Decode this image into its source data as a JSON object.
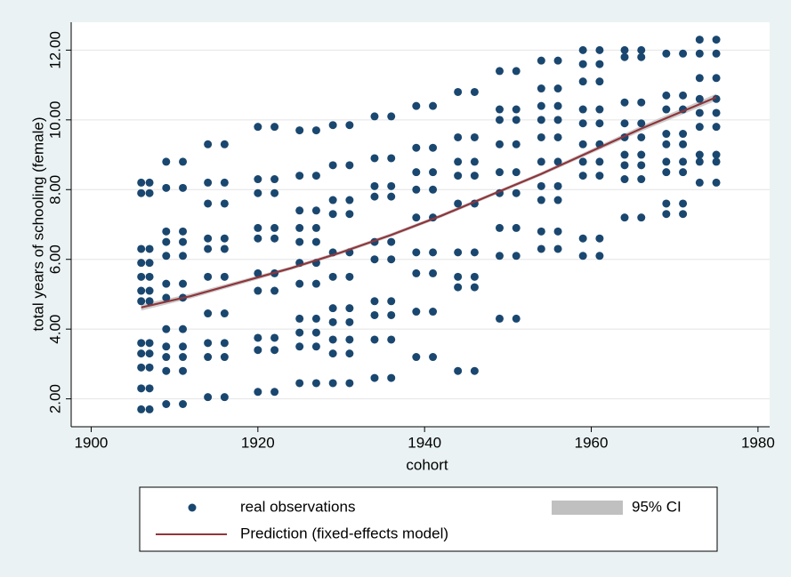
{
  "chart_data": {
    "type": "scatter",
    "x_label": "cohort",
    "y_label": "total years of schooling (female)",
    "xlim": [
      1897.6,
      1981.4
    ],
    "ylim": [
      1.2,
      12.8
    ],
    "xticks": [
      1900,
      1920,
      1940,
      1960,
      1980
    ],
    "yticks": [
      {
        "value": 2,
        "label": "2.00"
      },
      {
        "value": 4,
        "label": "4.00"
      },
      {
        "value": 6,
        "label": "6.00"
      },
      {
        "value": 8,
        "label": "8.00"
      },
      {
        "value": 10,
        "label": "10.00"
      },
      {
        "value": 12,
        "label": "12.00"
      }
    ],
    "grid": true,
    "legend": "bottom",
    "series": [
      {
        "name": "real observations",
        "type": "scatter",
        "color": "#1a476f",
        "x": [
          1906,
          1907,
          1906,
          1907,
          1906,
          1907,
          1906,
          1907,
          1906,
          1907,
          1906,
          1907,
          1906,
          1907,
          1906,
          1907,
          1906,
          1907,
          1906,
          1907,
          1906,
          1907,
          1906,
          1907,
          1909,
          1911,
          1909,
          1911,
          1909,
          1911,
          1909,
          1911,
          1909,
          1911,
          1909,
          1911,
          1909,
          1911,
          1909,
          1911,
          1909,
          1911,
          1909,
          1911,
          1909,
          1911,
          1909,
          1911,
          1914,
          1916,
          1914,
          1916,
          1914,
          1916,
          1914,
          1916,
          1914,
          1916,
          1914,
          1916,
          1914,
          1916,
          1914,
          1916,
          1914,
          1916,
          1914,
          1916,
          1920,
          1922,
          1920,
          1922,
          1920,
          1922,
          1920,
          1922,
          1920,
          1922,
          1920,
          1922,
          1920,
          1922,
          1920,
          1922,
          1920,
          1922,
          1920,
          1922,
          1925,
          1927,
          1925,
          1927,
          1925,
          1927,
          1925,
          1927,
          1925,
          1927,
          1925,
          1927,
          1925,
          1927,
          1925,
          1927,
          1925,
          1927,
          1925,
          1927,
          1925,
          1927,
          1929,
          1931,
          1929,
          1931,
          1929,
          1931,
          1929,
          1931,
          1929,
          1931,
          1929,
          1931,
          1929,
          1931,
          1929,
          1931,
          1929,
          1931,
          1929,
          1931,
          1929,
          1931,
          1934,
          1936,
          1934,
          1936,
          1934,
          1936,
          1934,
          1936,
          1934,
          1936,
          1934,
          1936,
          1934,
          1936,
          1934,
          1936,
          1934,
          1936,
          1934,
          1936,
          1939,
          1941,
          1939,
          1941,
          1939,
          1941,
          1939,
          1941,
          1939,
          1941,
          1939,
          1941,
          1939,
          1941,
          1939,
          1941,
          1939,
          1941,
          1944,
          1946,
          1944,
          1946,
          1944,
          1946,
          1944,
          1946,
          1944,
          1946,
          1944,
          1946,
          1944,
          1946,
          1944,
          1946,
          1944,
          1946,
          1949,
          1951,
          1949,
          1951,
          1949,
          1951,
          1949,
          1951,
          1949,
          1951,
          1949,
          1951,
          1949,
          1951,
          1949,
          1951,
          1949,
          1951,
          1954,
          1956,
          1954,
          1956,
          1954,
          1956,
          1954,
          1956,
          1954,
          1956,
          1954,
          1956,
          1954,
          1956,
          1954,
          1956,
          1954,
          1956,
          1954,
          1956,
          1959,
          1961,
          1959,
          1961,
          1959,
          1961,
          1959,
          1961,
          1959,
          1961,
          1959,
          1961,
          1959,
          1961,
          1959,
          1961,
          1959,
          1961,
          1959,
          1961,
          1964,
          1966,
          1964,
          1966,
          1964,
          1966,
          1964,
          1966,
          1964,
          1966,
          1964,
          1966,
          1964,
          1966,
          1964,
          1966,
          1964,
          1966,
          1969,
          1971,
          1969,
          1971,
          1969,
          1971,
          1969,
          1971,
          1969,
          1971,
          1969,
          1971,
          1969,
          1971,
          1969,
          1971,
          1969,
          1971,
          1973,
          1975,
          1973,
          1975,
          1973,
          1975,
          1973,
          1975,
          1973,
          1975,
          1973,
          1975,
          1973,
          1975,
          1973,
          1975,
          1973,
          1975
        ],
        "y": [
          1.7,
          1.7,
          2.3,
          2.3,
          2.9,
          2.9,
          3.3,
          3.3,
          3.6,
          3.6,
          4.8,
          4.8,
          5.1,
          5.1,
          5.5,
          5.5,
          5.9,
          5.9,
          6.3,
          6.3,
          7.9,
          7.9,
          8.2,
          8.2,
          1.85,
          1.85,
          2.8,
          2.8,
          3.2,
          3.2,
          3.5,
          3.5,
          4.0,
          4.0,
          4.9,
          4.9,
          5.3,
          5.3,
          6.1,
          6.1,
          6.5,
          6.5,
          6.8,
          6.8,
          8.05,
          8.05,
          8.8,
          8.8,
          2.05,
          2.05,
          3.2,
          3.2,
          3.6,
          3.6,
          4.45,
          4.45,
          5.5,
          5.5,
          6.3,
          6.3,
          6.6,
          6.6,
          7.6,
          7.6,
          8.2,
          8.2,
          9.3,
          9.3,
          2.2,
          2.2,
          3.4,
          3.4,
          3.75,
          3.75,
          5.1,
          5.1,
          5.6,
          5.6,
          6.6,
          6.6,
          6.9,
          6.9,
          7.9,
          7.9,
          8.3,
          8.3,
          9.8,
          9.8,
          2.45,
          2.45,
          3.5,
          3.5,
          3.9,
          3.9,
          4.3,
          4.3,
          5.3,
          5.3,
          5.9,
          5.9,
          6.5,
          6.5,
          6.9,
          6.9,
          7.4,
          7.4,
          8.4,
          8.4,
          9.7,
          9.7,
          2.45,
          2.45,
          3.3,
          3.3,
          3.7,
          3.7,
          4.2,
          4.2,
          4.6,
          4.6,
          5.5,
          5.5,
          6.2,
          6.2,
          7.3,
          7.3,
          7.7,
          7.7,
          8.7,
          8.7,
          9.85,
          9.85,
          2.6,
          2.6,
          3.7,
          3.7,
          4.4,
          4.4,
          4.8,
          4.8,
          6.0,
          6.0,
          6.5,
          6.5,
          7.8,
          7.8,
          8.1,
          8.1,
          8.9,
          8.9,
          10.1,
          10.1,
          3.2,
          3.2,
          4.5,
          4.5,
          5.6,
          5.6,
          6.2,
          6.2,
          7.2,
          7.2,
          8.0,
          8.0,
          8.5,
          8.5,
          9.2,
          9.2,
          10.4,
          10.4,
          2.8,
          2.8,
          5.2,
          5.2,
          5.5,
          5.5,
          6.2,
          6.2,
          7.6,
          7.6,
          8.4,
          8.4,
          8.8,
          8.8,
          9.5,
          9.5,
          10.8,
          10.8,
          4.3,
          4.3,
          6.1,
          6.1,
          6.9,
          6.9,
          7.9,
          7.9,
          8.5,
          8.5,
          9.3,
          9.3,
          10.0,
          10.0,
          10.3,
          10.3,
          11.4,
          11.4,
          6.3,
          6.3,
          6.8,
          6.8,
          7.7,
          7.7,
          8.1,
          8.1,
          8.8,
          8.8,
          9.5,
          9.5,
          10.0,
          10.0,
          10.4,
          10.4,
          10.9,
          10.9,
          11.7,
          11.7,
          6.1,
          6.1,
          6.6,
          6.6,
          8.4,
          8.4,
          8.8,
          8.8,
          9.3,
          9.3,
          9.9,
          9.9,
          10.3,
          10.3,
          11.1,
          11.1,
          11.6,
          11.6,
          12.0,
          12.0,
          7.2,
          7.2,
          8.3,
          8.3,
          8.7,
          8.7,
          9.0,
          9.0,
          9.5,
          9.5,
          9.9,
          9.9,
          10.5,
          10.5,
          11.8,
          11.8,
          12.0,
          12.0,
          7.3,
          7.3,
          7.6,
          7.6,
          8.5,
          8.5,
          8.8,
          8.8,
          9.3,
          9.3,
          9.6,
          9.6,
          10.3,
          10.3,
          10.7,
          10.7,
          11.9,
          11.9,
          8.2,
          8.2,
          8.8,
          8.8,
          9.0,
          9.0,
          9.8,
          9.8,
          10.2,
          10.2,
          10.6,
          10.6,
          11.2,
          11.2,
          11.9,
          11.9,
          12.3,
          12.3
        ]
      },
      {
        "name": "95% CI",
        "type": "band",
        "color": "#c0c0c0",
        "x": [
          1906,
          1912,
          1918,
          1924,
          1930,
          1936,
          1942,
          1948,
          1954,
          1960,
          1966,
          1972,
          1975
        ],
        "lower": [
          4.53,
          4.88,
          5.29,
          5.7,
          6.15,
          6.65,
          7.2,
          7.8,
          8.4,
          9.04,
          9.67,
          10.26,
          10.55
        ],
        "upper": [
          4.71,
          5.02,
          5.41,
          5.8,
          6.25,
          6.75,
          7.3,
          7.9,
          8.5,
          9.16,
          9.83,
          10.44,
          10.75
        ]
      },
      {
        "name": "Prediction (fixed-effects model)",
        "type": "line",
        "color": "#90353b",
        "x": [
          1906,
          1912,
          1918,
          1924,
          1930,
          1936,
          1942,
          1948,
          1954,
          1960,
          1966,
          1972,
          1975
        ],
        "y": [
          4.62,
          4.95,
          5.35,
          5.75,
          6.2,
          6.7,
          7.25,
          7.85,
          8.45,
          9.1,
          9.75,
          10.35,
          10.65
        ]
      }
    ]
  }
}
